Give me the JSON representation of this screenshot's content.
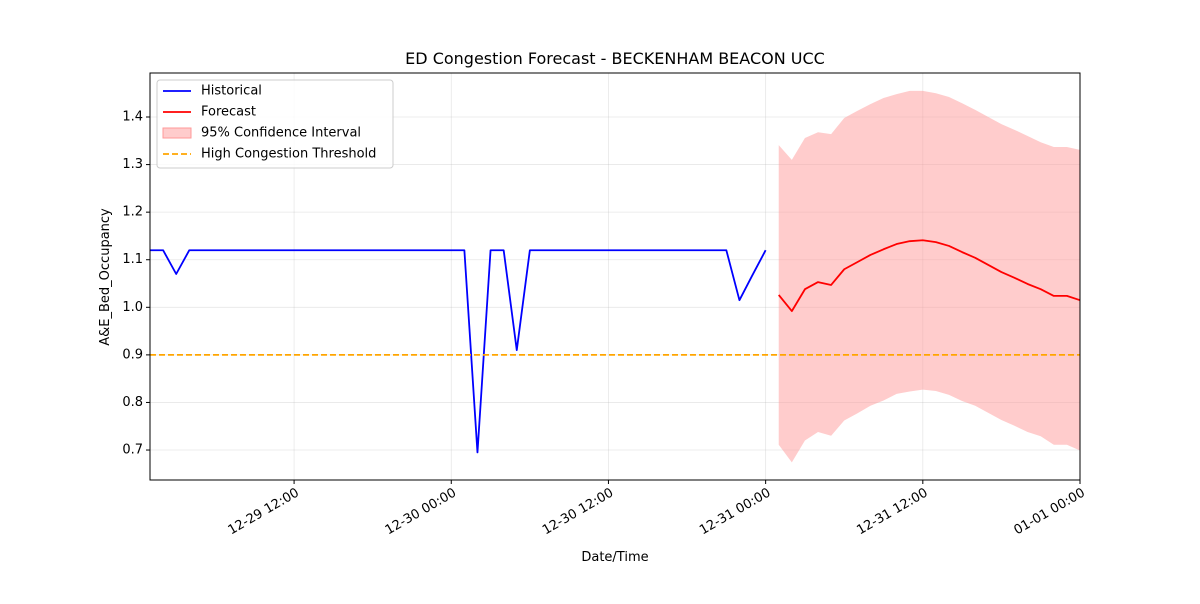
{
  "chart_data": {
    "type": "line",
    "title": "ED Congestion Forecast - BECKENHAM BEACON UCC",
    "xlabel": "Date/Time",
    "ylabel": "A&E_Bed_Occupancy",
    "xlim": [
      "12-29 01:00",
      "01-01 00:00"
    ],
    "xticks": [
      "12-29 12:00",
      "12-30 00:00",
      "12-30 12:00",
      "12-31 00:00",
      "12-31 12:00",
      "01-01 00:00"
    ],
    "ylim": [
      0.637,
      1.4925
    ],
    "yticks": [
      0.7,
      0.8,
      0.9,
      {
        "value": 1,
        "label": "1.0"
      },
      1.1,
      1.2,
      1.3,
      1.4
    ],
    "grid": true,
    "legend": "upper left",
    "series": [
      {
        "name": "Historical",
        "color": "#0000ff",
        "x": [
          "12-29 01:00",
          "12-29 02:00",
          "12-29 03:00",
          "12-29 04:00",
          "12-29 05:00",
          "12-29 06:00",
          "12-29 07:00",
          "12-29 08:00",
          "12-29 09:00",
          "12-29 10:00",
          "12-29 11:00",
          "12-29 12:00",
          "12-29 13:00",
          "12-29 14:00",
          "12-29 15:00",
          "12-29 16:00",
          "12-29 17:00",
          "12-29 18:00",
          "12-29 19:00",
          "12-29 20:00",
          "12-29 21:00",
          "12-29 22:00",
          "12-29 23:00",
          "12-30 00:00",
          "12-30 01:00",
          "12-30 02:00",
          "12-30 03:00",
          "12-30 04:00",
          "12-30 05:00",
          "12-30 06:00",
          "12-30 07:00",
          "12-30 08:00",
          "12-30 09:00",
          "12-30 10:00",
          "12-30 11:00",
          "12-30 12:00",
          "12-30 13:00",
          "12-30 14:00",
          "12-30 15:00",
          "12-30 16:00",
          "12-30 17:00",
          "12-30 18:00",
          "12-30 19:00",
          "12-30 20:00",
          "12-30 21:00",
          "12-30 22:00",
          "12-30 23:00",
          "12-31 00:00"
        ],
        "values": [
          1.12,
          1.12,
          1.07,
          1.12,
          1.12,
          1.12,
          1.12,
          1.12,
          1.12,
          1.12,
          1.12,
          1.12,
          1.12,
          1.12,
          1.12,
          1.12,
          1.12,
          1.12,
          1.12,
          1.12,
          1.12,
          1.12,
          1.12,
          1.12,
          1.12,
          0.695,
          1.12,
          1.12,
          0.91,
          1.12,
          1.12,
          1.12,
          1.12,
          1.12,
          1.12,
          1.12,
          1.12,
          1.12,
          1.12,
          1.12,
          1.12,
          1.12,
          1.12,
          1.12,
          1.12,
          1.015,
          1.068,
          1.12
        ]
      },
      {
        "name": "Forecast",
        "color": "#ff0000",
        "x": [
          "12-31 01:00",
          "12-31 02:00",
          "12-31 03:00",
          "12-31 04:00",
          "12-31 05:00",
          "12-31 06:00",
          "12-31 07:00",
          "12-31 08:00",
          "12-31 09:00",
          "12-31 10:00",
          "12-31 11:00",
          "12-31 12:00",
          "12-31 13:00",
          "12-31 14:00",
          "12-31 15:00",
          "12-31 16:00",
          "12-31 17:00",
          "12-31 18:00",
          "12-31 19:00",
          "12-31 20:00",
          "12-31 21:00",
          "12-31 22:00",
          "12-31 23:00",
          "01-01 00:00"
        ],
        "values": [
          1.026,
          0.992,
          1.038,
          1.053,
          1.047,
          1.08,
          1.095,
          1.11,
          1.122,
          1.133,
          1.139,
          1.141,
          1.137,
          1.129,
          1.116,
          1.104,
          1.089,
          1.074,
          1.062,
          1.049,
          1.038,
          1.024,
          1.024,
          1.015
        ]
      }
    ],
    "band": {
      "name": "95% Confidence Interval",
      "color": "#ff9999",
      "x": [
        "12-31 01:00",
        "12-31 02:00",
        "12-31 03:00",
        "12-31 04:00",
        "12-31 05:00",
        "12-31 06:00",
        "12-31 07:00",
        "12-31 08:00",
        "12-31 09:00",
        "12-31 10:00",
        "12-31 11:00",
        "12-31 12:00",
        "12-31 13:00",
        "12-31 14:00",
        "12-31 15:00",
        "12-31 16:00",
        "12-31 17:00",
        "12-31 18:00",
        "12-31 19:00",
        "12-31 20:00",
        "12-31 21:00",
        "12-31 22:00",
        "12-31 23:00",
        "01-01 00:00"
      ],
      "upper": [
        1.341,
        1.31,
        1.356,
        1.368,
        1.364,
        1.398,
        1.413,
        1.427,
        1.44,
        1.448,
        1.455,
        1.455,
        1.45,
        1.442,
        1.429,
        1.415,
        1.4,
        1.385,
        1.373,
        1.36,
        1.347,
        1.337,
        1.337,
        1.331
      ],
      "lower": [
        0.711,
        0.674,
        0.72,
        0.738,
        0.73,
        0.762,
        0.777,
        0.793,
        0.804,
        0.818,
        0.823,
        0.827,
        0.824,
        0.816,
        0.803,
        0.793,
        0.778,
        0.763,
        0.751,
        0.738,
        0.729,
        0.711,
        0.711,
        0.699
      ]
    },
    "threshold": {
      "name": "High Congestion Threshold",
      "value": 0.9,
      "color": "#ffa500"
    }
  }
}
